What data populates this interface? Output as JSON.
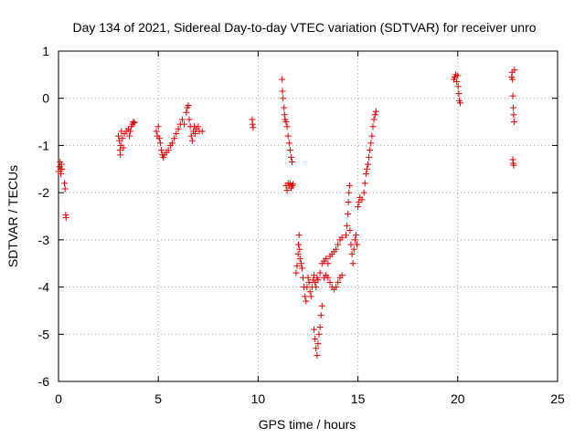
{
  "chart_data": {
    "type": "scatter",
    "title": "Day 134 of 2021, Sidereal Day-to-day VTEC variation (SDTVAR) for receiver unro",
    "xlabel": "GPS time / hours",
    "ylabel": "SDTVAR / TECUs",
    "xlim": [
      0,
      25
    ],
    "ylim": [
      -6,
      1
    ],
    "xticks": [
      0,
      5,
      10,
      15,
      20,
      25
    ],
    "yticks": [
      -6,
      -5,
      -4,
      -3,
      -2,
      -1,
      0,
      1
    ],
    "grid": true,
    "marker": "plus",
    "series": [
      {
        "name": "SDTVAR",
        "color": "#e00000",
        "points": [
          [
            0.0,
            -1.55
          ],
          [
            0.05,
            -1.45
          ],
          [
            0.08,
            -1.35
          ],
          [
            0.1,
            -1.5
          ],
          [
            0.12,
            -1.6
          ],
          [
            0.15,
            -1.4
          ],
          [
            0.18,
            -1.5
          ],
          [
            0.3,
            -1.8
          ],
          [
            0.33,
            -1.92
          ],
          [
            0.36,
            -2.47
          ],
          [
            0.38,
            -2.53
          ],
          [
            3.0,
            -0.8
          ],
          [
            3.05,
            -0.9
          ],
          [
            3.08,
            -1.1
          ],
          [
            3.1,
            -1.2
          ],
          [
            3.12,
            -1.0
          ],
          [
            3.15,
            -0.7
          ],
          [
            3.2,
            -0.85
          ],
          [
            3.25,
            -1.05
          ],
          [
            3.3,
            -0.75
          ],
          [
            3.4,
            -0.7
          ],
          [
            3.5,
            -0.65
          ],
          [
            3.55,
            -0.8
          ],
          [
            3.6,
            -0.7
          ],
          [
            3.65,
            -0.6
          ],
          [
            3.7,
            -0.55
          ],
          [
            3.75,
            -0.5
          ],
          [
            3.8,
            -0.52
          ],
          [
            4.9,
            -0.7
          ],
          [
            4.95,
            -0.8
          ],
          [
            5.0,
            -0.6
          ],
          [
            5.05,
            -0.85
          ],
          [
            5.1,
            -0.95
          ],
          [
            5.15,
            -1.1
          ],
          [
            5.2,
            -1.2
          ],
          [
            5.25,
            -1.25
          ],
          [
            5.3,
            -1.2
          ],
          [
            5.4,
            -1.15
          ],
          [
            5.5,
            -1.1
          ],
          [
            5.6,
            -1.0
          ],
          [
            5.7,
            -0.95
          ],
          [
            5.8,
            -0.85
          ],
          [
            5.9,
            -0.75
          ],
          [
            6.0,
            -0.65
          ],
          [
            6.1,
            -0.55
          ],
          [
            6.2,
            -0.45
          ],
          [
            6.3,
            -0.55
          ],
          [
            6.4,
            -0.3
          ],
          [
            6.45,
            -0.2
          ],
          [
            6.5,
            -0.15
          ],
          [
            6.55,
            -0.45
          ],
          [
            6.6,
            -0.6
          ],
          [
            6.65,
            -0.8
          ],
          [
            6.7,
            -0.9
          ],
          [
            6.75,
            -0.7
          ],
          [
            6.8,
            -0.6
          ],
          [
            6.85,
            -0.75
          ],
          [
            6.9,
            -0.65
          ],
          [
            7.0,
            -0.6
          ],
          [
            7.05,
            -0.7
          ],
          [
            7.2,
            -0.7
          ],
          [
            9.7,
            -0.45
          ],
          [
            9.72,
            -0.55
          ],
          [
            9.75,
            -0.62
          ],
          [
            11.2,
            0.4
          ],
          [
            11.22,
            0.15
          ],
          [
            11.25,
            0.0
          ],
          [
            11.3,
            -0.2
          ],
          [
            11.32,
            -0.35
          ],
          [
            11.35,
            -0.45
          ],
          [
            11.4,
            -0.5
          ],
          [
            11.45,
            -0.6
          ],
          [
            11.5,
            -0.8
          ],
          [
            11.55,
            -0.95
          ],
          [
            11.6,
            -1.1
          ],
          [
            11.65,
            -1.25
          ],
          [
            11.7,
            -1.35
          ],
          [
            11.4,
            -1.85
          ],
          [
            11.45,
            -1.95
          ],
          [
            11.5,
            -1.8
          ],
          [
            11.55,
            -1.85
          ],
          [
            11.6,
            -1.8
          ],
          [
            11.65,
            -1.9
          ],
          [
            11.7,
            -1.85
          ],
          [
            11.75,
            -1.82
          ],
          [
            11.9,
            -3.7
          ],
          [
            11.95,
            -3.55
          ],
          [
            12.0,
            -3.3
          ],
          [
            12.02,
            -3.1
          ],
          [
            12.05,
            -2.9
          ],
          [
            12.08,
            -3.2
          ],
          [
            12.1,
            -3.4
          ],
          [
            12.15,
            -3.5
          ],
          [
            12.2,
            -3.6
          ],
          [
            12.25,
            -3.8
          ],
          [
            12.3,
            -4.0
          ],
          [
            12.35,
            -4.2
          ],
          [
            12.4,
            -4.3
          ],
          [
            12.45,
            -4.0
          ],
          [
            12.5,
            -3.8
          ],
          [
            12.55,
            -3.9
          ],
          [
            12.6,
            -4.1
          ],
          [
            12.65,
            -4.2
          ],
          [
            12.7,
            -4.0
          ],
          [
            12.75,
            -3.85
          ],
          [
            12.8,
            -3.75
          ],
          [
            12.85,
            -3.9
          ],
          [
            12.9,
            -4.0
          ],
          [
            12.95,
            -3.8
          ],
          [
            12.8,
            -4.9
          ],
          [
            12.85,
            -5.1
          ],
          [
            12.9,
            -5.3
          ],
          [
            12.95,
            -5.45
          ],
          [
            13.0,
            -5.2
          ],
          [
            13.05,
            -5.0
          ],
          [
            13.1,
            -4.85
          ],
          [
            13.15,
            -4.6
          ],
          [
            13.2,
            -4.4
          ],
          [
            13.0,
            -3.85
          ],
          [
            13.1,
            -3.7
          ],
          [
            13.2,
            -3.5
          ],
          [
            13.3,
            -3.45
          ],
          [
            13.4,
            -3.4
          ],
          [
            13.5,
            -3.5
          ],
          [
            13.6,
            -3.35
          ],
          [
            13.7,
            -3.3
          ],
          [
            13.8,
            -3.25
          ],
          [
            13.9,
            -3.2
          ],
          [
            14.0,
            -3.1
          ],
          [
            14.1,
            -3.0
          ],
          [
            14.2,
            -2.95
          ],
          [
            13.3,
            -3.8
          ],
          [
            13.4,
            -3.75
          ],
          [
            13.5,
            -3.8
          ],
          [
            13.6,
            -3.9
          ],
          [
            13.7,
            -4.0
          ],
          [
            13.8,
            -4.05
          ],
          [
            13.9,
            -4.0
          ],
          [
            14.0,
            -3.9
          ],
          [
            14.1,
            -3.8
          ],
          [
            14.2,
            -3.75
          ],
          [
            14.4,
            -2.9
          ],
          [
            14.45,
            -2.7
          ],
          [
            14.5,
            -2.45
          ],
          [
            14.52,
            -2.2
          ],
          [
            14.55,
            -2.0
          ],
          [
            14.58,
            -1.85
          ],
          [
            14.6,
            -2.8
          ],
          [
            14.65,
            -3.1
          ],
          [
            14.7,
            -3.3
          ],
          [
            14.75,
            -3.5
          ],
          [
            14.8,
            -3.2
          ],
          [
            14.85,
            -3.0
          ],
          [
            14.9,
            -2.9
          ],
          [
            14.95,
            -3.1
          ],
          [
            15.0,
            -2.3
          ],
          [
            15.05,
            -2.2
          ],
          [
            15.1,
            -2.1
          ],
          [
            15.2,
            -2.15
          ],
          [
            15.3,
            -2.0
          ],
          [
            15.35,
            -1.8
          ],
          [
            15.4,
            -1.6
          ],
          [
            15.45,
            -1.5
          ],
          [
            15.5,
            -1.4
          ],
          [
            15.55,
            -1.25
          ],
          [
            15.6,
            -1.1
          ],
          [
            15.65,
            -0.95
          ],
          [
            15.7,
            -0.8
          ],
          [
            15.75,
            -0.6
          ],
          [
            15.8,
            -0.45
          ],
          [
            15.85,
            -0.35
          ],
          [
            15.9,
            -0.28
          ],
          [
            19.8,
            0.4
          ],
          [
            19.85,
            0.45
          ],
          [
            19.9,
            0.5
          ],
          [
            19.95,
            0.35
          ],
          [
            20.0,
            0.48
          ],
          [
            20.02,
            0.25
          ],
          [
            20.05,
            0.1
          ],
          [
            20.08,
            -0.05
          ],
          [
            20.12,
            -0.1
          ],
          [
            22.7,
            0.45
          ],
          [
            22.72,
            0.55
          ],
          [
            22.74,
            0.4
          ],
          [
            22.76,
            0.05
          ],
          [
            22.78,
            -0.2
          ],
          [
            22.8,
            -0.35
          ],
          [
            22.82,
            -0.5
          ],
          [
            22.84,
            0.6
          ],
          [
            22.76,
            -1.3
          ],
          [
            22.78,
            -1.38
          ],
          [
            22.8,
            -1.42
          ]
        ]
      }
    ]
  }
}
